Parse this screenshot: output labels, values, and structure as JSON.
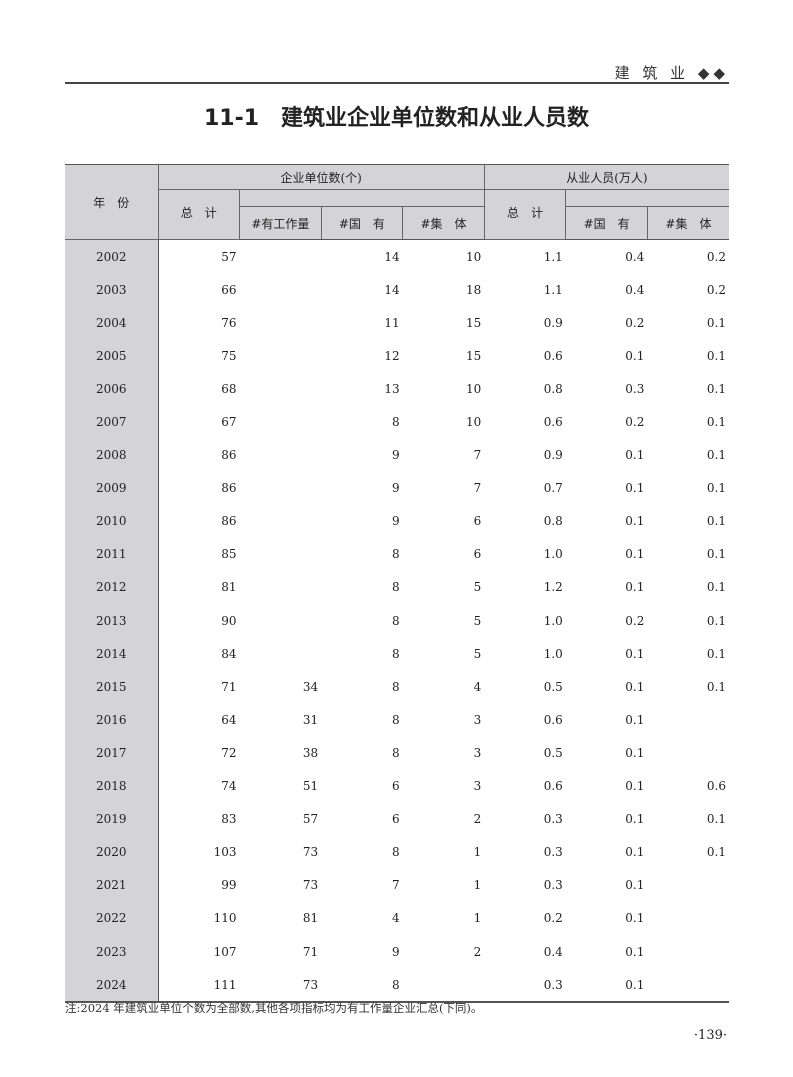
{
  "running_head": "建 筑 业 ◆◆",
  "title": {
    "number": "11-1",
    "text": "建筑业企业单位数和从业人员数"
  },
  "table": {
    "year_header": "年　份",
    "group1": "企业单位数(个)",
    "group2": "从业人员(万人)",
    "sub": [
      "总　计",
      "#有工作量",
      "#国　有",
      "#集　体",
      "总　计",
      "#国　有",
      "#集　体"
    ],
    "rows": [
      [
        "2002",
        "57",
        "",
        "14",
        "10",
        "1.1",
        "0.4",
        "0.2"
      ],
      [
        "2003",
        "66",
        "",
        "14",
        "18",
        "1.1",
        "0.4",
        "0.2"
      ],
      [
        "2004",
        "76",
        "",
        "11",
        "15",
        "0.9",
        "0.2",
        "0.1"
      ],
      [
        "2005",
        "75",
        "",
        "12",
        "15",
        "0.6",
        "0.1",
        "0.1"
      ],
      [
        "2006",
        "68",
        "",
        "13",
        "10",
        "0.8",
        "0.3",
        "0.1"
      ],
      [
        "2007",
        "67",
        "",
        "8",
        "10",
        "0.6",
        "0.2",
        "0.1"
      ],
      [
        "2008",
        "86",
        "",
        "9",
        "7",
        "0.9",
        "0.1",
        "0.1"
      ],
      [
        "2009",
        "86",
        "",
        "9",
        "7",
        "0.7",
        "0.1",
        "0.1"
      ],
      [
        "2010",
        "86",
        "",
        "9",
        "6",
        "0.8",
        "0.1",
        "0.1"
      ],
      [
        "2011",
        "85",
        "",
        "8",
        "6",
        "1.0",
        "0.1",
        "0.1"
      ],
      [
        "2012",
        "81",
        "",
        "8",
        "5",
        "1.2",
        "0.1",
        "0.1"
      ],
      [
        "2013",
        "90",
        "",
        "8",
        "5",
        "1.0",
        "0.2",
        "0.1"
      ],
      [
        "2014",
        "84",
        "",
        "8",
        "5",
        "1.0",
        "0.1",
        "0.1"
      ],
      [
        "2015",
        "71",
        "34",
        "8",
        "4",
        "0.5",
        "0.1",
        "0.1"
      ],
      [
        "2016",
        "64",
        "31",
        "8",
        "3",
        "0.6",
        "0.1",
        ""
      ],
      [
        "2017",
        "72",
        "38",
        "8",
        "3",
        "0.5",
        "0.1",
        ""
      ],
      [
        "2018",
        "74",
        "51",
        "6",
        "3",
        "0.6",
        "0.1",
        "0.6"
      ],
      [
        "2019",
        "83",
        "57",
        "6",
        "2",
        "0.3",
        "0.1",
        "0.1"
      ],
      [
        "2020",
        "103",
        "73",
        "8",
        "1",
        "0.3",
        "0.1",
        "0.1"
      ],
      [
        "2021",
        "99",
        "73",
        "7",
        "1",
        "0.3",
        "0.1",
        ""
      ],
      [
        "2022",
        "110",
        "81",
        "4",
        "1",
        "0.2",
        "0.1",
        ""
      ],
      [
        "2023",
        "107",
        "71",
        "9",
        "2",
        "0.4",
        "0.1",
        ""
      ],
      [
        "2024",
        "111",
        "73",
        "8",
        "",
        "0.3",
        "0.1",
        ""
      ]
    ]
  },
  "note": "注:2024 年建筑业单位个数为全部数,其他各项指标均为有工作量企业汇总(下同)。",
  "page_number": "·139·"
}
